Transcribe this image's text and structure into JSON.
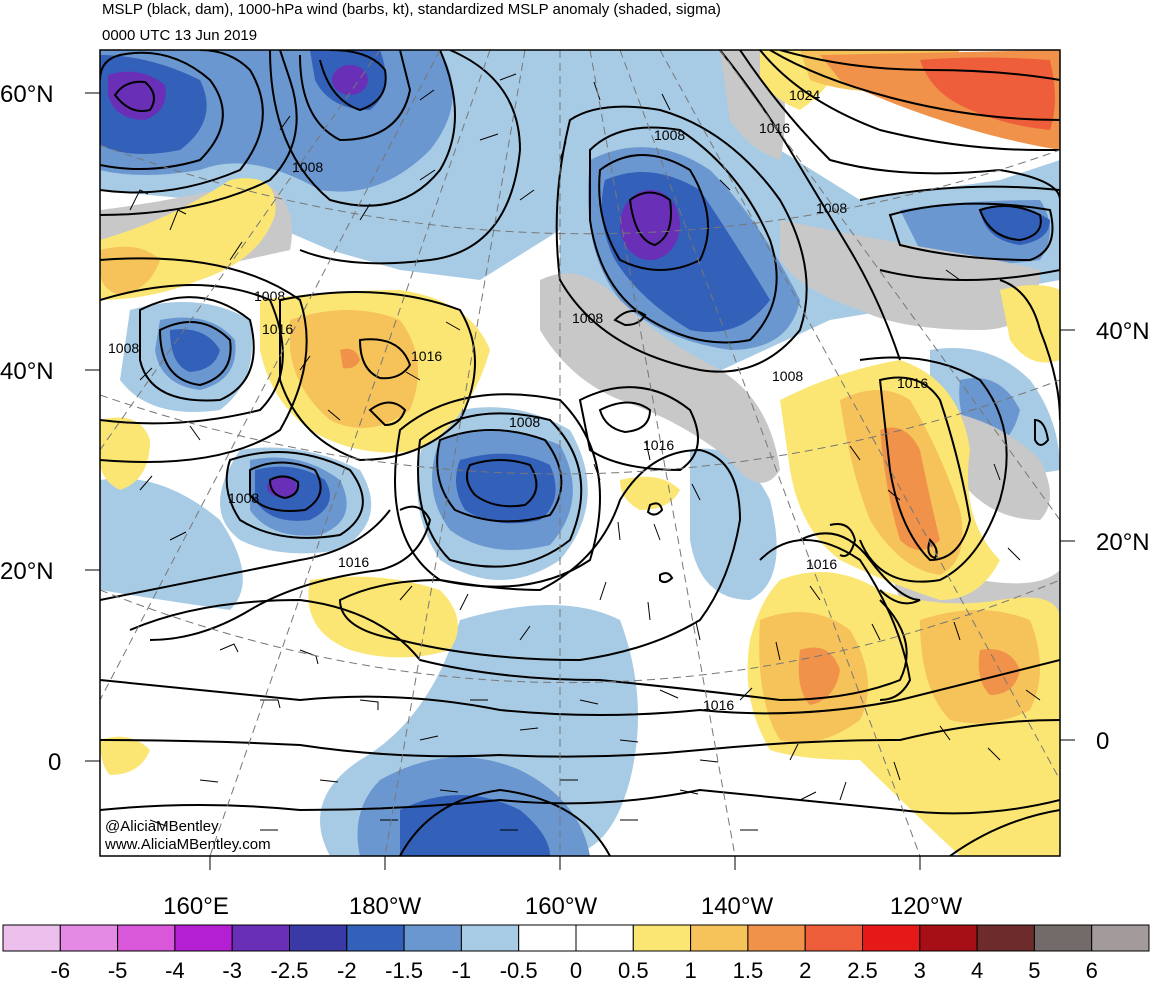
{
  "title": "MSLP (black, dam), 1000-hPa wind (barbs, kt), standardized MSLP anomaly (shaded, sigma)",
  "valid_time": "0000 UTC 13 Jun 2019",
  "credits": [
    "@AliciaMBentley",
    "www.AliciaMBentley.com"
  ],
  "lat_labels": [
    {
      "text": "60°N",
      "side": "left"
    },
    {
      "text": "40°N",
      "side": "left"
    },
    {
      "text": "20°N",
      "side": "left"
    },
    {
      "text": "0",
      "side": "left"
    },
    {
      "text": "40°N",
      "side": "right"
    },
    {
      "text": "20°N",
      "side": "right"
    },
    {
      "text": "0",
      "side": "right"
    }
  ],
  "lon_labels": [
    "160°E",
    "180°W",
    "160°W",
    "140°W",
    "120°W"
  ],
  "contour_labels": [
    "1008",
    "1008",
    "1008",
    "1016",
    "1016",
    "1008",
    "1008",
    "1008",
    "1016",
    "1008",
    "1016",
    "1024",
    "1016",
    "1008",
    "1008",
    "1016",
    "1016",
    "1016"
  ],
  "colorbar": {
    "labels": [
      "-6",
      "-5",
      "-4",
      "-3",
      "-2.5",
      "-2",
      "-1.5",
      "-1",
      "-0.5",
      "0",
      "0.5",
      "1",
      "1.5",
      "2",
      "2.5",
      "3",
      "4",
      "5",
      "6"
    ],
    "colors": [
      "#ecbfec",
      "#e48ae4",
      "#d957d9",
      "#b51fd4",
      "#6a2fb7",
      "#3a3aa6",
      "#3360b8",
      "#6a97cf",
      "#a8cbe5",
      "#ffffff",
      "#ffffff",
      "#fbe674",
      "#f6c25a",
      "#f0924a",
      "#ee5e3a",
      "#e61919",
      "#a50f15",
      "#6e2b2b",
      "#736a6a",
      "#a39b9b"
    ]
  }
}
